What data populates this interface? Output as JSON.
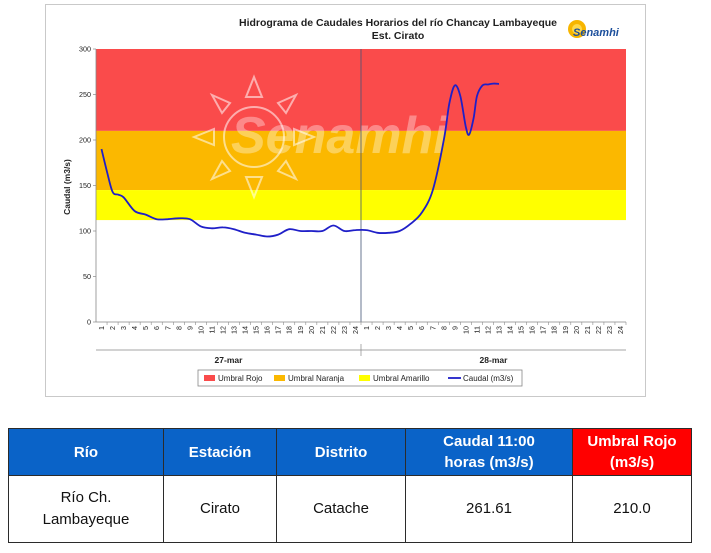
{
  "chart_data": {
    "type": "line",
    "title": "Hidrograma de Caudales Horarios del río Chancay Lambayeque",
    "subtitle": "Est. Cirato",
    "ylabel": "Caudal  (m3/s)",
    "xlabel": "",
    "ylim": [
      0,
      300
    ],
    "yticks": [
      0,
      50,
      100,
      150,
      200,
      250,
      300
    ],
    "x_ticks": [
      "1",
      "2",
      "3",
      "4",
      "5",
      "6",
      "7",
      "8",
      "9",
      "10",
      "11",
      "12",
      "13",
      "14",
      "15",
      "16",
      "17",
      "18",
      "19",
      "20",
      "21",
      "22",
      "23",
      "24",
      "1",
      "2",
      "3",
      "4",
      "5",
      "6",
      "7",
      "8",
      "9",
      "10",
      "11",
      "12",
      "13",
      "14",
      "15",
      "16",
      "17",
      "18",
      "19",
      "20",
      "21",
      "22",
      "23",
      "24"
    ],
    "x_groups": [
      {
        "label": "27-mar",
        "start_index": 1,
        "end_index": 24
      },
      {
        "label": "28-mar",
        "start_index": 25,
        "end_index": 48
      }
    ],
    "bands": [
      {
        "name": "Umbral Rojo",
        "from": 210,
        "to": 300,
        "color": "#fa4b4b"
      },
      {
        "name": "Umbral Naranja",
        "from": 145,
        "to": 210,
        "color": "#fbb800"
      },
      {
        "name": "Umbral Amarillo",
        "from": 112,
        "to": 145,
        "color": "#ffff00"
      }
    ],
    "series": [
      {
        "name": "Caudal (m3/s)",
        "color": "#1f1fc8",
        "x": [
          1,
          1.5,
          2,
          2.5,
          3,
          4,
          5,
          6,
          7,
          8,
          9,
          10,
          11,
          12,
          13,
          14,
          15,
          16,
          17,
          18,
          19,
          20,
          21,
          22,
          23,
          24,
          25,
          26,
          27,
          28,
          29,
          30,
          31,
          32,
          32.5,
          33,
          33.5,
          34,
          34.3,
          34.7,
          35,
          35.5,
          36,
          36.5,
          37
        ],
        "values": [
          190,
          165,
          143,
          140,
          137,
          122,
          118,
          113,
          113,
          114,
          113,
          105,
          103,
          104,
          102,
          98,
          96,
          94,
          96,
          102,
          100,
          100,
          100,
          106,
          100,
          101,
          101,
          98,
          98,
          100,
          108,
          120,
          145,
          200,
          240,
          260,
          248,
          214,
          206,
          224,
          248,
          260,
          261,
          262,
          261.61
        ]
      }
    ],
    "legend_position": "bottom",
    "grid": false
  },
  "legend": [
    {
      "label": "Umbral Rojo",
      "color": "#fa4b4b",
      "kind": "band"
    },
    {
      "label": "Umbral Naranja",
      "color": "#fbb800",
      "kind": "band"
    },
    {
      "label": "Umbral Amarillo",
      "color": "#ffff00",
      "kind": "band"
    },
    {
      "label": "Caudal (m3/s)",
      "color": "#1f1fc8",
      "kind": "line"
    }
  ],
  "logo": {
    "text": "Senamhi",
    "watermark_text": "Senamhi",
    "sun_icon": "sun-icon"
  },
  "table": {
    "headers": {
      "rio": "Río",
      "estacion": "Estación",
      "distrito": "Distrito",
      "caudal_line1": "Caudal 11:00",
      "caudal_line2": "horas (m3/s)",
      "umbral_line1": "Umbral Rojo",
      "umbral_line2": "(m3/s)"
    },
    "row": {
      "rio_line1": "Río Ch.",
      "rio_line2": "Lambayeque",
      "estacion": "Cirato",
      "distrito": "Catache",
      "caudal": "261.61",
      "umbral": "210.0"
    },
    "colors": {
      "header_blue": "#0a63c8",
      "header_red": "#ff0000"
    }
  }
}
